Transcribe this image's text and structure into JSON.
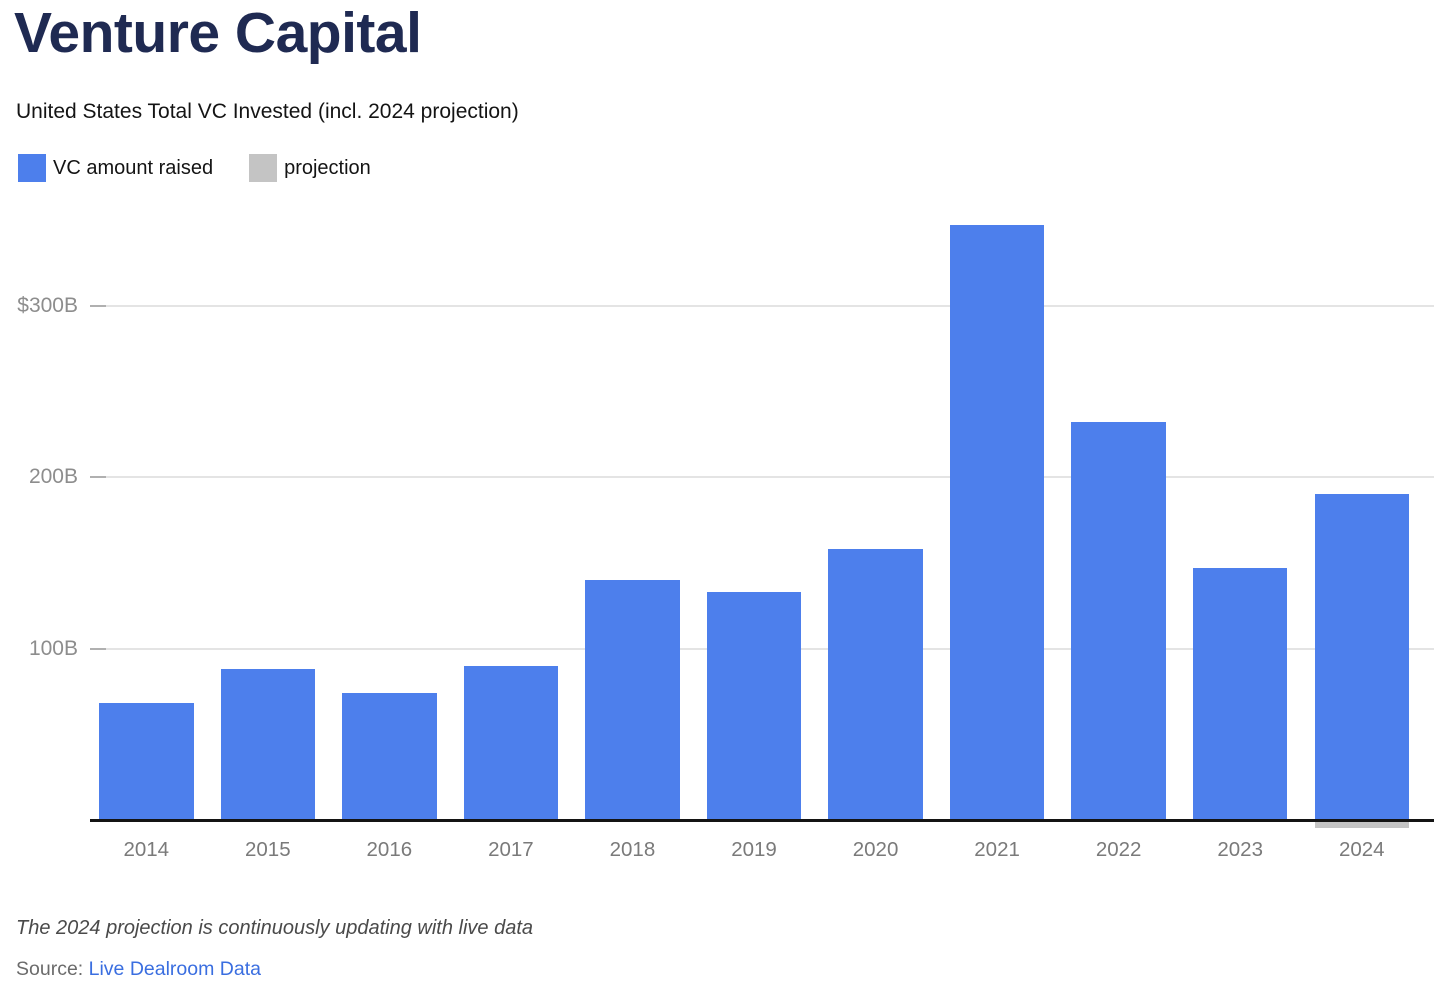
{
  "header": {
    "title": "Venture Capital",
    "subtitle": "United States Total VC Invested (incl. 2024 projection)"
  },
  "legend": {
    "items": [
      {
        "label": "VC amount raised",
        "color": "#4d7fec"
      },
      {
        "label": "projection",
        "color": "#c4c4c4"
      }
    ]
  },
  "chart_data": {
    "type": "bar",
    "title": "Venture Capital",
    "subtitle": "United States Total VC Invested (incl. 2024 projection)",
    "categories": [
      "2014",
      "2015",
      "2016",
      "2017",
      "2018",
      "2019",
      "2020",
      "2021",
      "2022",
      "2023",
      "2024"
    ],
    "series": [
      {
        "name": "VC amount raised",
        "color": "#4d7fec",
        "values": [
          68,
          88,
          74,
          90,
          140,
          133,
          158,
          347,
          232,
          147,
          190
        ]
      },
      {
        "name": "projection",
        "color": "#c4c4c4",
        "values": [
          null,
          null,
          null,
          null,
          null,
          null,
          null,
          null,
          null,
          null,
          190
        ]
      }
    ],
    "unit": "$B",
    "ylim": [
      0,
      360
    ],
    "yticks": [
      {
        "value": 300,
        "label": "$300B"
      },
      {
        "value": 200,
        "label": "200B"
      },
      {
        "value": 100,
        "label": "100B"
      }
    ],
    "grid": "horizontal",
    "legend_position": "top-left"
  },
  "footer": {
    "note": "The 2024 projection is continuously updating with live data",
    "source_label": "Source: ",
    "source_link": "Live Dealroom Data"
  }
}
